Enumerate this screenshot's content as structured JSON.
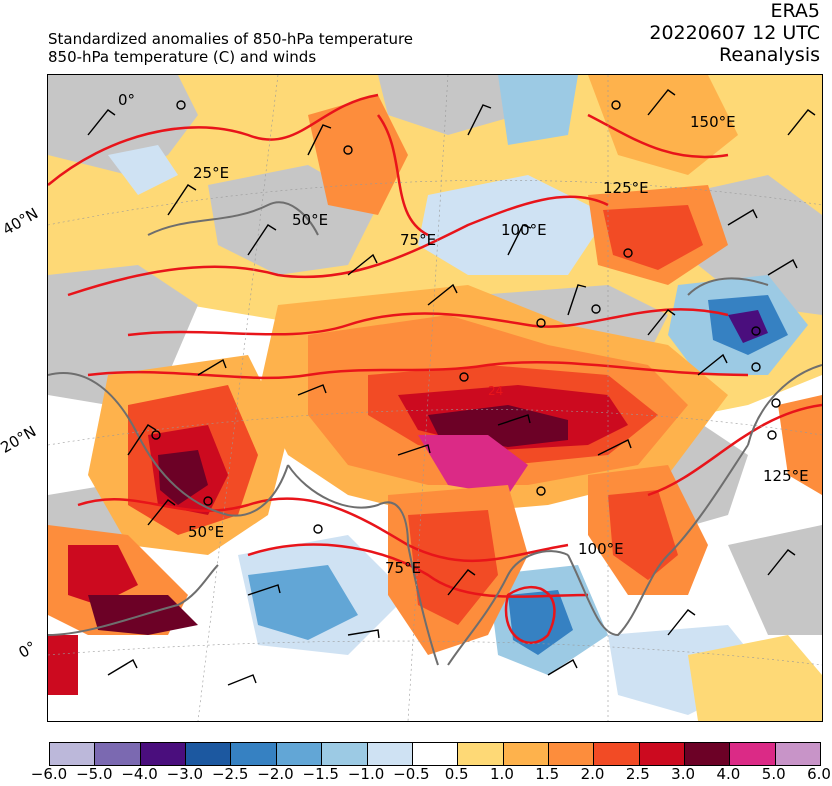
{
  "header": {
    "title_line1": "Standardized anomalies of 850-hPa temperature",
    "title_line2": "850-hPa temperature (C) and winds",
    "source": "ERA5",
    "datetime": "20220607 12 UTC",
    "product": "Reanalysis"
  },
  "map": {
    "lat_labels": [
      "40°N",
      "20°N",
      "0°"
    ],
    "lon_labels_north": [
      "0°",
      "25°E",
      "50°E",
      "75°E",
      "100°E",
      "125°E",
      "150°E"
    ],
    "lon_labels_south": [
      "50°E",
      "75°E",
      "100°E",
      "125°E"
    ],
    "contour_label": "24"
  },
  "colorbar": {
    "ticks": [
      "−6.0",
      "−5.0",
      "−4.0",
      "−3.0",
      "−2.5",
      "−2.0",
      "−1.5",
      "−1.0",
      "−0.5",
      "0.5",
      "1.0",
      "1.5",
      "2.0",
      "2.5",
      "3.0",
      "4.0",
      "5.0",
      "6.0"
    ],
    "colors": [
      "#bcb8da",
      "#7b69b1",
      "#4a0e7d",
      "#1c58a0",
      "#3681c2",
      "#62a6d6",
      "#9ccae4",
      "#cfe2f3",
      "#ffffff",
      "#fed976",
      "#feb24c",
      "#fd8d3c",
      "#f24b25",
      "#cc0a1f",
      "#6c0126",
      "#db2a86",
      "#c894c8"
    ]
  }
}
